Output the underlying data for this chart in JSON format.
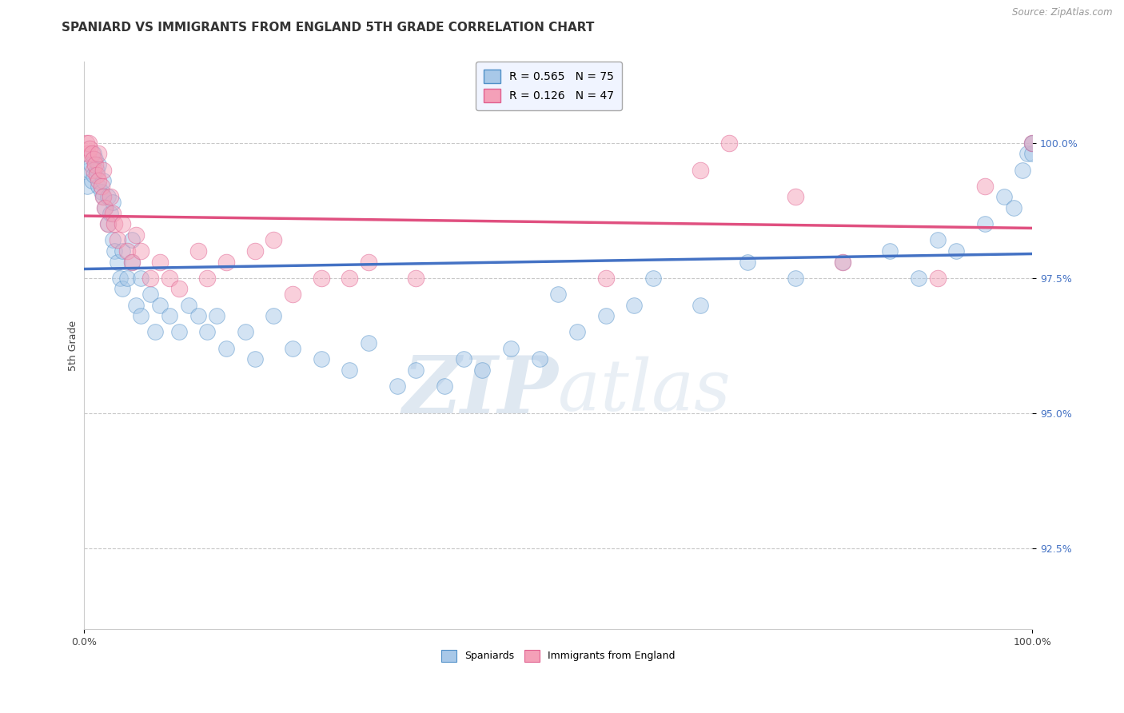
{
  "title": "SPANIARD VS IMMIGRANTS FROM ENGLAND 5TH GRADE CORRELATION CHART",
  "ylabel": "5th Grade",
  "source_text": "Source: ZipAtlas.com",
  "watermark_zip": "ZIP",
  "watermark_atlas": "atlas",
  "legend_label1": "Spaniards",
  "legend_label2": "Immigrants from England",
  "legend_r1": "R = 0.565",
  "legend_n1": "N = 75",
  "legend_r2": "R = 0.126",
  "legend_n2": "N = 47",
  "xlim": [
    0.0,
    100.0
  ],
  "ylim": [
    91.0,
    101.5
  ],
  "yticks": [
    92.5,
    95.0,
    97.5,
    100.0
  ],
  "xtick_labels": [
    "0.0%",
    "100.0%"
  ],
  "ytick_labels": [
    "92.5%",
    "95.0%",
    "97.5%",
    "100.0%"
  ],
  "color_blue": "#a8c8e8",
  "color_pink": "#f4a0b8",
  "edge_blue": "#5090c8",
  "edge_pink": "#e06090",
  "line_blue": "#4472c4",
  "line_pink": "#e05080",
  "bg_color": "#ffffff",
  "grid_color": "#c8c8c8",
  "spaniards_x": [
    0.3,
    0.5,
    0.7,
    0.8,
    1.0,
    1.0,
    1.2,
    1.3,
    1.5,
    1.5,
    1.8,
    2.0,
    2.0,
    2.2,
    2.5,
    2.5,
    2.8,
    3.0,
    3.0,
    3.2,
    3.5,
    3.8,
    4.0,
    4.0,
    4.5,
    5.0,
    5.0,
    5.5,
    6.0,
    6.0,
    7.0,
    7.5,
    8.0,
    9.0,
    10.0,
    11.0,
    12.0,
    13.0,
    14.0,
    15.0,
    17.0,
    18.0,
    20.0,
    22.0,
    25.0,
    28.0,
    30.0,
    33.0,
    35.0,
    38.0,
    40.0,
    42.0,
    45.0,
    48.0,
    50.0,
    52.0,
    55.0,
    58.0,
    60.0,
    65.0,
    70.0,
    75.0,
    80.0,
    85.0,
    88.0,
    90.0,
    92.0,
    95.0,
    97.0,
    98.0,
    99.0,
    99.5,
    100.0,
    100.0,
    100.0
  ],
  "spaniards_y": [
    99.2,
    99.5,
    99.6,
    99.3,
    99.8,
    99.4,
    99.7,
    99.5,
    99.6,
    99.2,
    99.1,
    99.0,
    99.3,
    98.8,
    98.5,
    99.0,
    98.7,
    98.2,
    98.9,
    98.0,
    97.8,
    97.5,
    97.3,
    98.0,
    97.5,
    97.8,
    98.2,
    97.0,
    97.5,
    96.8,
    97.2,
    96.5,
    97.0,
    96.8,
    96.5,
    97.0,
    96.8,
    96.5,
    96.8,
    96.2,
    96.5,
    96.0,
    96.8,
    96.2,
    96.0,
    95.8,
    96.3,
    95.5,
    95.8,
    95.5,
    96.0,
    95.8,
    96.2,
    96.0,
    97.2,
    96.5,
    96.8,
    97.0,
    97.5,
    97.0,
    97.8,
    97.5,
    97.8,
    98.0,
    97.5,
    98.2,
    98.0,
    98.5,
    99.0,
    98.8,
    99.5,
    99.8,
    99.8,
    100.0,
    100.0
  ],
  "england_x": [
    0.2,
    0.4,
    0.5,
    0.6,
    0.8,
    1.0,
    1.0,
    1.2,
    1.3,
    1.5,
    1.5,
    1.8,
    2.0,
    2.0,
    2.2,
    2.5,
    2.8,
    3.0,
    3.2,
    3.5,
    4.0,
    4.5,
    5.0,
    5.5,
    6.0,
    7.0,
    8.0,
    9.0,
    10.0,
    12.0,
    13.0,
    15.0,
    18.0,
    20.0,
    22.0,
    25.0,
    28.0,
    30.0,
    35.0,
    55.0,
    65.0,
    68.0,
    75.0,
    80.0,
    90.0,
    95.0,
    100.0
  ],
  "england_y": [
    100.0,
    99.8,
    100.0,
    99.9,
    99.8,
    99.7,
    99.5,
    99.6,
    99.4,
    99.8,
    99.3,
    99.2,
    99.0,
    99.5,
    98.8,
    98.5,
    99.0,
    98.7,
    98.5,
    98.2,
    98.5,
    98.0,
    97.8,
    98.3,
    98.0,
    97.5,
    97.8,
    97.5,
    97.3,
    98.0,
    97.5,
    97.8,
    98.0,
    98.2,
    97.2,
    97.5,
    97.5,
    97.8,
    97.5,
    97.5,
    99.5,
    100.0,
    99.0,
    97.8,
    97.5,
    99.2,
    100.0
  ],
  "title_fontsize": 11,
  "label_fontsize": 9,
  "tick_fontsize": 9,
  "source_fontsize": 8.5,
  "ytick_color": "#4472c4"
}
